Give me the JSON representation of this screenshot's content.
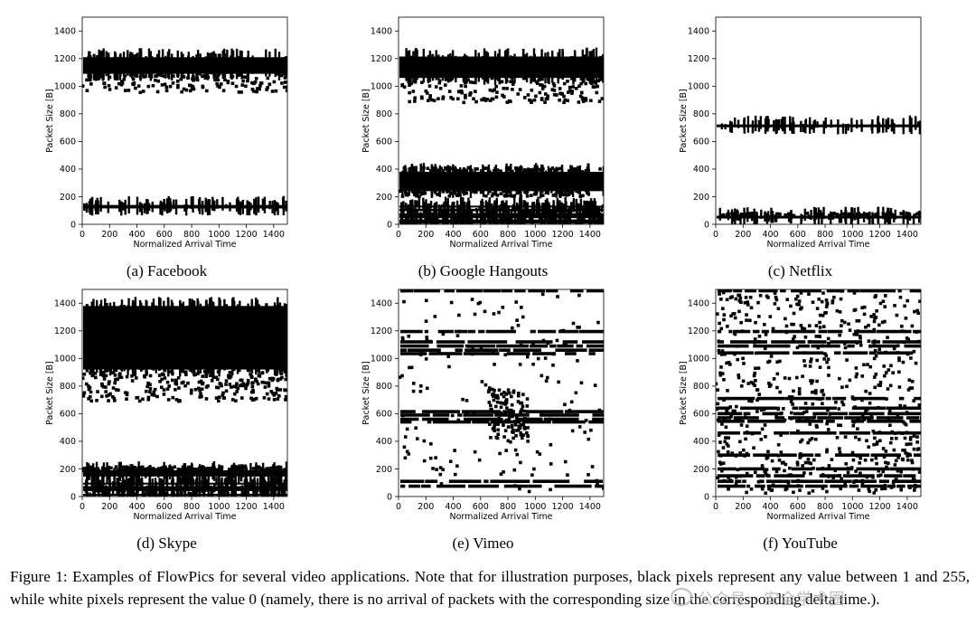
{
  "chart_data": [
    {
      "type": "scatter",
      "subcaption": "(a) Facebook",
      "xlabel": "Normalized Arrival Time",
      "ylabel": "Packet Size [B]",
      "xlim": [
        0,
        1500
      ],
      "ylim": [
        0,
        1500
      ],
      "xticks": [
        0,
        200,
        400,
        600,
        800,
        1000,
        1200,
        1400
      ],
      "yticks": [
        0,
        200,
        400,
        600,
        800,
        1000,
        1200,
        1400
      ],
      "bands": [
        [
          1090,
          1210
        ],
        [
          115,
          140
        ]
      ],
      "seed": 11,
      "scatter_ranges": [
        {
          "y": [
            950,
            1090
          ],
          "n": 140
        }
      ]
    },
    {
      "type": "scatter",
      "subcaption": "(b) Google Hangouts",
      "xlabel": "Normalized Arrival Time",
      "ylabel": "Packet Size [B]",
      "xlim": [
        0,
        1500
      ],
      "ylim": [
        0,
        1500
      ],
      "xticks": [
        0,
        200,
        400,
        600,
        800,
        1000,
        1200,
        1400
      ],
      "yticks": [
        0,
        200,
        400,
        600,
        800,
        1000,
        1200,
        1400
      ],
      "bands": [
        [
          1060,
          1215
        ],
        [
          240,
          380
        ],
        [
          125,
          135
        ],
        [
          95,
          112
        ],
        [
          45,
          80
        ],
        [
          5,
          35
        ]
      ],
      "seed": 23,
      "scatter_ranges": [
        {
          "y": [
            880,
            1060
          ],
          "n": 170
        },
        {
          "y": [
            200,
            240
          ],
          "n": 80
        },
        {
          "y": [
            380,
            410
          ],
          "n": 90
        }
      ]
    },
    {
      "type": "scatter",
      "subcaption": "(c) Netflix",
      "xlabel": "Normalized Arrival Time",
      "ylabel": "Packet Size [B]",
      "xlim": [
        0,
        1500
      ],
      "ylim": [
        0,
        1500
      ],
      "xticks": [
        0,
        200,
        400,
        600,
        800,
        1000,
        1200,
        1400
      ],
      "yticks": [
        0,
        200,
        400,
        600,
        800,
        1000,
        1200,
        1400
      ],
      "bands": [
        [
          703,
          723
        ],
        [
          42,
          62
        ]
      ],
      "seed": 37,
      "scatter_ranges": [
        {
          "y": [
            62,
            80
          ],
          "n": 50
        }
      ]
    },
    {
      "type": "scatter",
      "subcaption": "(d) Skype",
      "xlabel": "Normalized Arrival Time",
      "ylabel": "Packet Size [B]",
      "xlim": [
        0,
        1500
      ],
      "ylim": [
        0,
        1500
      ],
      "xticks": [
        0,
        200,
        400,
        600,
        800,
        1000,
        1200,
        1400
      ],
      "yticks": [
        0,
        200,
        400,
        600,
        800,
        1000,
        1200,
        1400
      ],
      "bands": [
        [
          920,
          1380
        ],
        [
          145,
          190
        ],
        [
          88,
          100
        ],
        [
          40,
          75
        ],
        [
          5,
          20
        ]
      ],
      "seed": 41,
      "scatter_ranges": [
        {
          "y": [
            690,
            920
          ],
          "n": 260
        },
        {
          "y": [
            185,
            215
          ],
          "n": 160
        }
      ]
    },
    {
      "type": "scatter",
      "subcaption": "(e) Vimeo",
      "xlabel": "Normalized Arrival Time",
      "ylabel": "Packet Size [B]",
      "xlim": [
        0,
        1500
      ],
      "ylim": [
        0,
        1500
      ],
      "xticks": [
        0,
        200,
        400,
        600,
        800,
        1000,
        1200,
        1400
      ],
      "yticks": [
        0,
        200,
        400,
        600,
        800,
        1000,
        1200,
        1400
      ],
      "lines": [
        1490,
        1195,
        1120,
        1090,
        1060,
        1035,
        615,
        590,
        560,
        540,
        110,
        75
      ],
      "seed": 53,
      "scatter_ranges": [
        {
          "y": [
            20,
            1500
          ],
          "n": 170,
          "xr": [
            0,
            1500
          ]
        },
        {
          "y": [
            420,
            780
          ],
          "n": 110,
          "xr": [
            650,
            950
          ]
        }
      ]
    },
    {
      "type": "scatter",
      "subcaption": "(f) YouTube",
      "xlabel": "Normalized Arrival Time",
      "ylabel": "Packet Size [B]",
      "xlim": [
        0,
        1500
      ],
      "ylim": [
        0,
        1500
      ],
      "xticks": [
        0,
        200,
        400,
        600,
        800,
        1000,
        1200,
        1400
      ],
      "yticks": [
        0,
        200,
        400,
        600,
        800,
        1000,
        1200,
        1400
      ],
      "lines": [
        1490,
        1195,
        1120,
        1090,
        1040,
        710,
        640,
        600,
        570,
        545,
        460,
        300,
        200,
        150,
        110,
        75
      ],
      "seed": 67,
      "scatter_ranges": [
        {
          "y": [
            20,
            1500
          ],
          "n": 650,
          "xr": [
            0,
            1500
          ]
        }
      ]
    }
  ],
  "caption": "Figure 1: Examples of FlowPics for several video applications. Note that for illustration purposes, black pixels represent any value between 1 and 255, while white pixels represent the value 0 (namely, there is no arrival of packets with the corresponding size in the corresponding delta time.).",
  "watermark": "公众号 · 安全学术圈"
}
